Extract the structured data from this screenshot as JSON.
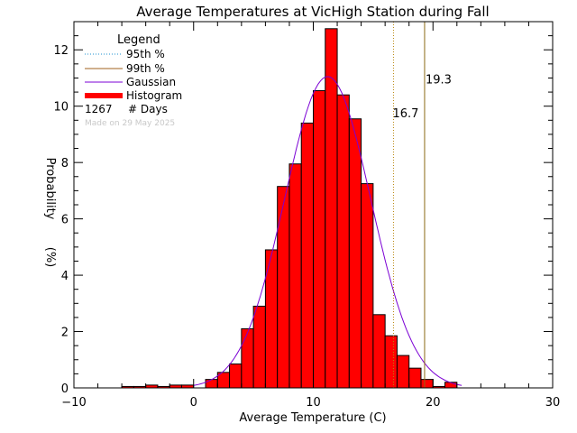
{
  "chart_data": {
    "type": "bar",
    "title": "Average Temperatures at VicHigh Station during Fall",
    "xlabel": "Average Temperature (C)",
    "ylabel_line1": "Probability",
    "ylabel_line2": "(%)",
    "xlim": [
      -10,
      30
    ],
    "ylim": [
      0,
      13
    ],
    "x_ticks": [
      -10,
      0,
      10,
      20,
      30
    ],
    "y_ticks": [
      0,
      2,
      4,
      6,
      8,
      10,
      12
    ],
    "bin_width": 1,
    "bins": [
      {
        "x0": -6,
        "value": 0.05
      },
      {
        "x0": -5,
        "value": 0.05
      },
      {
        "x0": -4,
        "value": 0.1
      },
      {
        "x0": -3,
        "value": 0.05
      },
      {
        "x0": -2,
        "value": 0.1
      },
      {
        "x0": -1,
        "value": 0.1
      },
      {
        "x0": 0,
        "value": 0.0
      },
      {
        "x0": 1,
        "value": 0.3
      },
      {
        "x0": 2,
        "value": 0.55
      },
      {
        "x0": 3,
        "value": 0.85
      },
      {
        "x0": 4,
        "value": 2.1
      },
      {
        "x0": 5,
        "value": 2.9
      },
      {
        "x0": 6,
        "value": 4.9
      },
      {
        "x0": 7,
        "value": 7.15
      },
      {
        "x0": 8,
        "value": 7.95
      },
      {
        "x0": 9,
        "value": 9.4
      },
      {
        "x0": 10,
        "value": 10.55
      },
      {
        "x0": 11,
        "value": 12.75
      },
      {
        "x0": 12,
        "value": 10.4
      },
      {
        "x0": 13,
        "value": 9.55
      },
      {
        "x0": 14,
        "value": 7.25
      },
      {
        "x0": 15,
        "value": 2.6
      },
      {
        "x0": 16,
        "value": 1.85
      },
      {
        "x0": 17,
        "value": 1.15
      },
      {
        "x0": 18,
        "value": 0.7
      },
      {
        "x0": 19,
        "value": 0.3
      },
      {
        "x0": 20,
        "value": 0.05
      },
      {
        "x0": 21,
        "value": 0.2
      }
    ],
    "gaussian": {
      "mean": 11.2,
      "sigma": 3.6,
      "peak": 11.05
    },
    "percentile_95": {
      "value": 16.7,
      "label": "16.7",
      "color": "#1e90d0",
      "line_color": "#b8860b"
    },
    "percentile_99": {
      "value": 19.3,
      "label": "19.3",
      "color": "#a0601e",
      "line_color": "#8b6914"
    },
    "legend": {
      "title": "Legend",
      "entries": [
        {
          "label": "95th %",
          "color": "#1e90d0",
          "style": "dotted"
        },
        {
          "label": "99th %",
          "color": "#a0601e",
          "style": "solid"
        },
        {
          "label": "Gaussian",
          "color": "#7b00d4",
          "style": "solid"
        },
        {
          "label": "Histogram",
          "color": "#ff0000",
          "style": "thick"
        }
      ],
      "count": "1267",
      "count_label": "# Days",
      "made_on": "Made on 29 May 2025"
    },
    "colors": {
      "bar_fill": "#ff0000",
      "bar_stroke": "#000000",
      "gaussian": "#7b00d4"
    }
  }
}
